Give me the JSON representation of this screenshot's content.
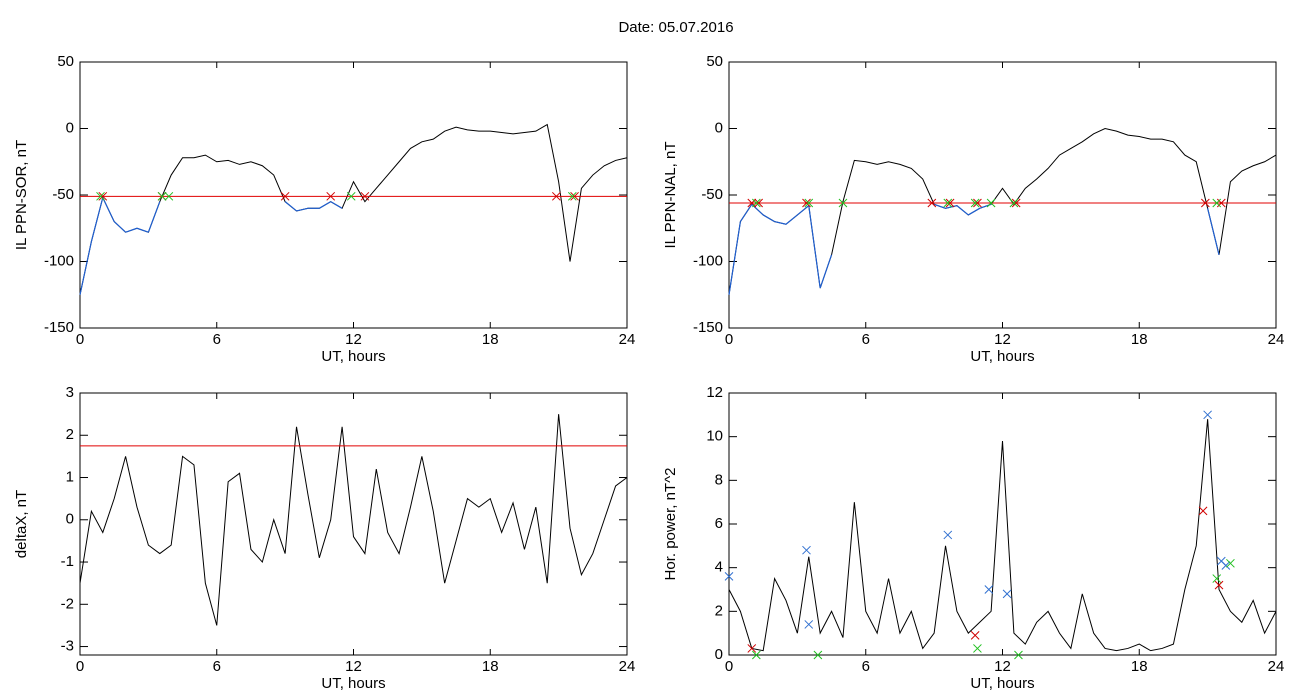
{
  "title": "Date:  05.07.2016",
  "chart_data": [
    {
      "type": "line",
      "ylabel": "IL PPN-SOR, nT",
      "xlabel": "UT, hours",
      "xlim": [
        0,
        24
      ],
      "xticks": [
        0,
        6,
        12,
        18,
        24
      ],
      "ylim": [
        -150,
        50
      ],
      "yticks": [
        -150,
        -100,
        -50,
        0,
        50
      ],
      "x": [
        0,
        0.5,
        1,
        1.5,
        2,
        2.5,
        3,
        3.5,
        4,
        4.5,
        5,
        5.5,
        6,
        6.5,
        7,
        7.5,
        8,
        8.5,
        9,
        9.5,
        10,
        10.5,
        11,
        11.5,
        12,
        12.5,
        13,
        13.5,
        14,
        14.5,
        15,
        15.5,
        16,
        16.5,
        17,
        17.5,
        18,
        18.5,
        19,
        19.5,
        20,
        20.5,
        21,
        21.5,
        22,
        22.5,
        23,
        23.5,
        24
      ],
      "series": [
        {
          "color": "#000000",
          "below_color": "#1f5fd0",
          "values": [
            -125,
            -85,
            -52,
            -70,
            -78,
            -75,
            -78,
            -55,
            -35,
            -22,
            -22,
            -20,
            -25,
            -24,
            -27,
            -25,
            -28,
            -35,
            -55,
            -62,
            -60,
            -60,
            -55,
            -60,
            -40,
            -55,
            -45,
            -35,
            -25,
            -15,
            -10,
            -8,
            -2,
            1,
            -1,
            -2,
            -2,
            -3,
            -4,
            -3,
            -2,
            3,
            -40,
            -100,
            -45,
            -35,
            -28,
            -24,
            -22
          ]
        }
      ],
      "threshold": -51,
      "threshold_color": "#e00000",
      "markers": [
        {
          "color": "#d00000",
          "x": [
            1,
            3.6,
            9,
            11,
            12.5,
            20.9,
            21.7
          ],
          "y": [
            -51,
            -51,
            -51,
            -51,
            -51,
            -51,
            -51
          ]
        },
        {
          "color": "#20c020",
          "x": [
            0.9,
            3.6,
            3.9,
            11.9,
            21.6
          ],
          "y": [
            -51,
            -51,
            -51,
            -51,
            -51
          ]
        }
      ]
    },
    {
      "type": "line",
      "ylabel": "IL PPN-NAL, nT",
      "xlabel": "UT, hours",
      "xlim": [
        0,
        24
      ],
      "xticks": [
        0,
        6,
        12,
        18,
        24
      ],
      "ylim": [
        -150,
        50
      ],
      "yticks": [
        -150,
        -100,
        -50,
        0,
        50
      ],
      "x": [
        0,
        0.5,
        1,
        1.5,
        2,
        2.5,
        3,
        3.5,
        4,
        4.5,
        5,
        5.5,
        6,
        6.5,
        7,
        7.5,
        8,
        8.5,
        9,
        9.5,
        10,
        10.5,
        11,
        11.5,
        12,
        12.5,
        13,
        13.5,
        14,
        14.5,
        15,
        15.5,
        16,
        16.5,
        17,
        17.5,
        18,
        18.5,
        19,
        19.5,
        20,
        20.5,
        21,
        21.5,
        22,
        22.5,
        23,
        23.5,
        24
      ],
      "series": [
        {
          "color": "#000000",
          "below_color": "#1f5fd0",
          "values": [
            -125,
            -70,
            -57,
            -65,
            -70,
            -72,
            -65,
            -58,
            -120,
            -95,
            -55,
            -24,
            -25,
            -27,
            -25,
            -27,
            -30,
            -38,
            -57,
            -60,
            -58,
            -65,
            -60,
            -57,
            -45,
            -57,
            -45,
            -38,
            -30,
            -20,
            -15,
            -10,
            -4,
            0,
            -2,
            -5,
            -6,
            -8,
            -8,
            -10,
            -20,
            -25,
            -60,
            -95,
            -40,
            -32,
            -28,
            -25,
            -20
          ]
        }
      ],
      "threshold": -56,
      "threshold_color": "#e00000",
      "markers": [
        {
          "color": "#d00000",
          "x": [
            1,
            1.3,
            3.4,
            8.9,
            9.7,
            10.9,
            12.6,
            20.9,
            21.6
          ],
          "y": [
            -56,
            -56,
            -56,
            -56,
            -56,
            -56,
            -56,
            -56,
            -56
          ]
        },
        {
          "color": "#20c020",
          "x": [
            1.2,
            3.5,
            5,
            9.6,
            10.8,
            11.5,
            12.5,
            21.4
          ],
          "y": [
            -56,
            -56,
            -56,
            -56,
            -56,
            -56,
            -56,
            -56
          ]
        }
      ]
    },
    {
      "type": "line",
      "ylabel": "deltaX, nT",
      "xlabel": "UT, hours",
      "xlim": [
        0,
        24
      ],
      "xticks": [
        0,
        6,
        12,
        18,
        24
      ],
      "ylim": [
        -3.2,
        3
      ],
      "yticks": [
        -3,
        -2,
        -1,
        0,
        1,
        2,
        3
      ],
      "x": [
        0,
        0.5,
        1,
        1.5,
        2,
        2.5,
        3,
        3.5,
        4,
        4.5,
        5,
        5.5,
        6,
        6.5,
        7,
        7.5,
        8,
        8.5,
        9,
        9.5,
        10,
        10.5,
        11,
        11.5,
        12,
        12.5,
        13,
        13.5,
        14,
        14.5,
        15,
        15.5,
        16,
        16.5,
        17,
        17.5,
        18,
        18.5,
        19,
        19.5,
        20,
        20.5,
        21,
        21.5,
        22,
        22.5,
        23,
        23.5,
        24
      ],
      "series": [
        {
          "color": "#000000",
          "values": [
            -1.5,
            0.2,
            -0.3,
            0.5,
            1.5,
            0.3,
            -0.6,
            -0.8,
            -0.6,
            1.5,
            1.3,
            -1.5,
            -2.5,
            0.9,
            1.1,
            -0.7,
            -1,
            0,
            -0.8,
            2.2,
            0.6,
            -0.9,
            0,
            2.2,
            -0.4,
            -0.8,
            1.2,
            -0.3,
            -0.8,
            0.3,
            1.5,
            0.2,
            -1.5,
            -0.5,
            0.5,
            0.3,
            0.5,
            -0.3,
            0.4,
            -0.7,
            0.3,
            -1.5,
            2.5,
            -0.2,
            -1.3,
            -0.8,
            0,
            0.8,
            1.0
          ]
        }
      ],
      "threshold": 1.75,
      "threshold_color": "#e00000"
    },
    {
      "type": "line",
      "ylabel": "Hor. power, nT^2",
      "xlabel": "UT, hours",
      "xlim": [
        0,
        24
      ],
      "xticks": [
        0,
        6,
        12,
        18,
        24
      ],
      "ylim": [
        0,
        12
      ],
      "yticks": [
        0,
        2,
        4,
        6,
        8,
        10,
        12
      ],
      "x": [
        0,
        0.5,
        1,
        1.5,
        2,
        2.5,
        3,
        3.5,
        4,
        4.5,
        5,
        5.5,
        6,
        6.5,
        7,
        7.5,
        8,
        8.5,
        9,
        9.5,
        10,
        10.5,
        11,
        11.5,
        12,
        12.5,
        13,
        13.5,
        14,
        14.5,
        15,
        15.5,
        16,
        16.5,
        17,
        17.5,
        18,
        18.5,
        19,
        19.5,
        20,
        20.5,
        21,
        21.5,
        22,
        22.5,
        23,
        23.5,
        24
      ],
      "series": [
        {
          "color": "#000000",
          "values": [
            3,
            2,
            0.3,
            0.2,
            3.5,
            2.5,
            1,
            4.5,
            1,
            2,
            0.8,
            7,
            2,
            1,
            3.5,
            1,
            2,
            0.3,
            1,
            5,
            2,
            1,
            1.5,
            2,
            9.8,
            1,
            0.5,
            1.5,
            2,
            1,
            0.3,
            2.8,
            1,
            0.3,
            0.2,
            0.3,
            0.5,
            0.2,
            0.3,
            0.5,
            3,
            5,
            10.8,
            3,
            2,
            1.5,
            2.5,
            1,
            2
          ]
        }
      ],
      "markers": [
        {
          "color": "#3070d0",
          "x": [
            0,
            3.4,
            3.5,
            9.6,
            11.4,
            12.2,
            21,
            21.6,
            21.8
          ],
          "y": [
            3.6,
            4.8,
            1.4,
            5.5,
            3,
            2.8,
            11,
            4.3,
            4.1
          ]
        },
        {
          "color": "#d00000",
          "x": [
            1,
            10.8,
            20.8,
            21.5
          ],
          "y": [
            0.3,
            0.9,
            6.6,
            3.2
          ]
        },
        {
          "color": "#20c020",
          "x": [
            1.2,
            3.9,
            10.9,
            12.7,
            21.4,
            22
          ],
          "y": [
            0,
            0,
            0.3,
            0,
            3.5,
            4.2
          ]
        }
      ]
    }
  ]
}
